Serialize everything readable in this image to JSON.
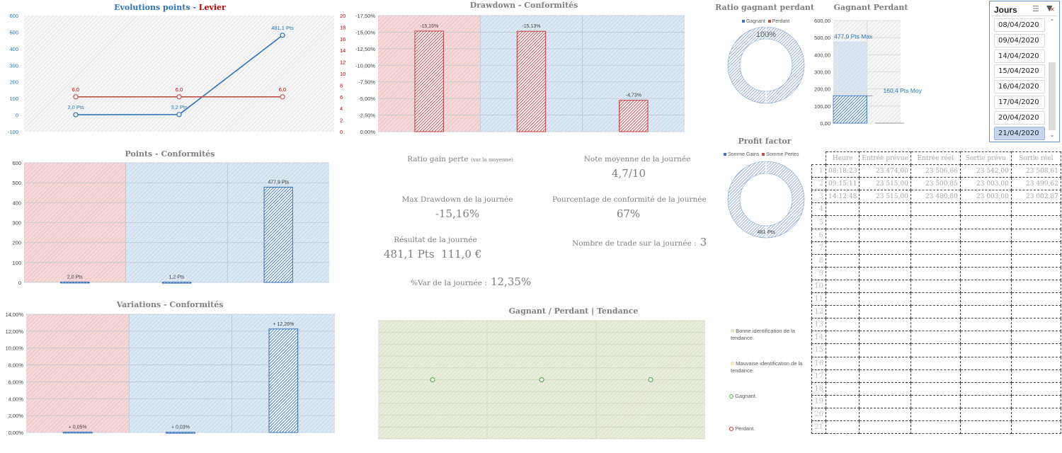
{
  "colors": {
    "blue": "#3a78c2",
    "red": "#c0504d",
    "dark_red": "#c00000",
    "pink_bg": "#f4cfd1",
    "blue_bg": "#d3e2f0",
    "green": "#4caf50",
    "green_bg": "#e4e8d5"
  },
  "evolution_chart": {
    "title_part1": "Evolutions points",
    "title_sep": " - ",
    "title_part2": "Levier"
  },
  "drawdown_chart": {
    "title": "Drawdown - Conformités"
  },
  "points_chart": {
    "title": "Points - Conformités"
  },
  "variations_chart": {
    "title": "Variations - Conformités"
  },
  "ratio_chart": {
    "title": "Ratio gagnant perdant",
    "legend": [
      "Gagnant",
      "Perdant"
    ],
    "label": "100%"
  },
  "gagnant_perdant_chart": {
    "title": "Gagnant Perdant",
    "max_label": "477,9 Pts Max",
    "avg_label": "160,4 Pts Moy"
  },
  "profit_factor_chart": {
    "title": "Profit factor",
    "legend": [
      "Somme Gains",
      "Somme Pertes"
    ],
    "label": "481 Pts"
  },
  "tendance_chart": {
    "title": "Gagnant / Perdant | Tendance"
  },
  "tendance_legend": {
    "good": "Bonne identification de la tendance.",
    "bad": "Mauvaise identification de la tendance.",
    "win": "Gagnant.",
    "lose": "Perdant."
  },
  "kpis": {
    "ratio_label": "Ratio gain perte",
    "ratio_note": "(sur la moyenne)",
    "note_label": "Note moyenne de la journée",
    "note_value": "4,7/10",
    "max_dd_label": "Max Drawdown de la journée",
    "max_dd_value": "-15,16%",
    "conformity_label": "Pourcentage de conformité de la journée",
    "conformity_value": "67%",
    "result_label": "Résultat de la journée",
    "result_pts": "481,1 Pts",
    "result_eur": "111,0 €",
    "trades_label": "Nombre de trade sur la journée :",
    "trades_value": "3",
    "var_label": "%Var de la journée :",
    "var_value": "12,35%"
  },
  "slicer": {
    "title": "Jours",
    "items": [
      "08/04/2020",
      "09/04/2020",
      "14/04/2020",
      "15/04/2020",
      "16/04/2020",
      "17/04/2020",
      "20/04/2020",
      "21/04/2020"
    ],
    "selected": "21/04/2020"
  },
  "trades_table": {
    "headers": [
      "Heure",
      "Entrée prévue",
      "Entrée réel",
      "Sortie prévu",
      "Sortie réel"
    ],
    "rows": [
      [
        "08:18:23",
        "23 474,00",
        "23 506,66",
        "23 542,00",
        "23 508,61"
      ],
      [
        "09:15:11",
        "23 515,00",
        "23 500,85",
        "23 003,00",
        "23 499,62"
      ],
      [
        "14:12:48",
        "23 515,00",
        "23 480,80",
        "23 003,00",
        "23 002,87"
      ]
    ],
    "row_count": 21
  },
  "chart_data": [
    {
      "id": "evolution",
      "type": "line",
      "title": "Evolutions points - Levier",
      "x": [
        1,
        2,
        3
      ],
      "series": [
        {
          "name": "Points",
          "axis": "left",
          "values": [
            2.0,
            3.2,
            481.1
          ],
          "labels": [
            "2,0 Pts",
            "3,2 Pts",
            "481,1 Pts"
          ]
        },
        {
          "name": "Levier",
          "axis": "right",
          "values": [
            6.0,
            6.0,
            6.0
          ],
          "labels": [
            "6,0",
            "6,0",
            "6,0"
          ]
        }
      ],
      "ylim_left": [
        -100,
        600
      ],
      "yticks_left": [
        "-100",
        "0",
        "100",
        "200",
        "300",
        "400",
        "500",
        "600"
      ],
      "ylim_right": [
        0,
        20
      ],
      "yticks_right": [
        "0",
        "2",
        "4",
        "6",
        "8",
        "10",
        "12",
        "14",
        "16",
        "18",
        "20"
      ]
    },
    {
      "id": "drawdown",
      "type": "bar",
      "title": "Drawdown - Conformités",
      "categories": [
        "1",
        "2",
        "3"
      ],
      "values": [
        -15.16,
        -15.13,
        -4.73
      ],
      "labels": [
        "-15,16%",
        "-15,13%",
        "-4,73%"
      ],
      "ylim": [
        0,
        -17.5
      ],
      "yticks": [
        "0,00%",
        "-2,50%",
        "-5,00%",
        "-7,50%",
        "-10,00%",
        "-12,50%",
        "-15,00%",
        "-17,50%"
      ],
      "band_conformity": [
        "non-conforme",
        "conforme",
        "conforme"
      ]
    },
    {
      "id": "points",
      "type": "bar",
      "title": "Points - Conformités",
      "categories": [
        "1",
        "2",
        "3"
      ],
      "values": [
        2.0,
        1.2,
        477.9
      ],
      "labels": [
        "2,0 Pts",
        "1,2 Pts",
        "477,9 Pts"
      ],
      "ylim": [
        0,
        600
      ],
      "yticks": [
        "0",
        "100",
        "200",
        "300",
        "400",
        "500",
        "600"
      ],
      "band_conformity": [
        "non-conforme",
        "conforme",
        "conforme"
      ]
    },
    {
      "id": "variations",
      "type": "bar",
      "title": "Variations - Conformités",
      "categories": [
        "1",
        "2",
        "3"
      ],
      "values": [
        0.05,
        0.03,
        12.26
      ],
      "labels": [
        "+ 0,05%",
        "+ 0,03%",
        "+ 12,26%"
      ],
      "ylim": [
        0,
        14
      ],
      "yticks": [
        "0,00%",
        "2,00%",
        "4,00%",
        "6,00%",
        "8,00%",
        "10,00%",
        "12,00%",
        "14,00%"
      ],
      "band_conformity": [
        "non-conforme",
        "conforme",
        "conforme"
      ]
    },
    {
      "id": "ratio",
      "type": "pie",
      "title": "Ratio gagnant perdant",
      "categories": [
        "Gagnant",
        "Perdant"
      ],
      "values": [
        100,
        0
      ],
      "labels": [
        "100%"
      ]
    },
    {
      "id": "gagnant_perdant",
      "type": "bar",
      "title": "Gagnant Perdant",
      "categories": [
        "Gagnant",
        "Perdant"
      ],
      "series": [
        {
          "name": "Max",
          "values": [
            477.9,
            0
          ]
        },
        {
          "name": "Moy",
          "values": [
            160.4,
            0
          ]
        }
      ],
      "labels": [
        "477,9 Pts Max",
        "160,4 Pts Moy"
      ],
      "ylim": [
        0,
        600
      ],
      "yticks": [
        "0,00",
        "100,00",
        "200,00",
        "300,00",
        "400,00",
        "500,00",
        "600,00"
      ]
    },
    {
      "id": "profit_factor",
      "type": "pie",
      "title": "Profit factor",
      "categories": [
        "Somme Gains",
        "Somme Pertes"
      ],
      "values": [
        481,
        0
      ],
      "labels": [
        "481 Pts"
      ]
    },
    {
      "id": "tendance",
      "type": "scatter",
      "title": "Gagnant / Perdant | Tendance",
      "x": [
        1,
        2,
        3
      ],
      "series": [
        {
          "name": "Gagnant",
          "values": [
            5,
            5,
            5
          ]
        }
      ],
      "ylim": [
        0,
        10
      ],
      "band_trend": [
        "bonne",
        "bonne",
        "bonne"
      ]
    }
  ]
}
